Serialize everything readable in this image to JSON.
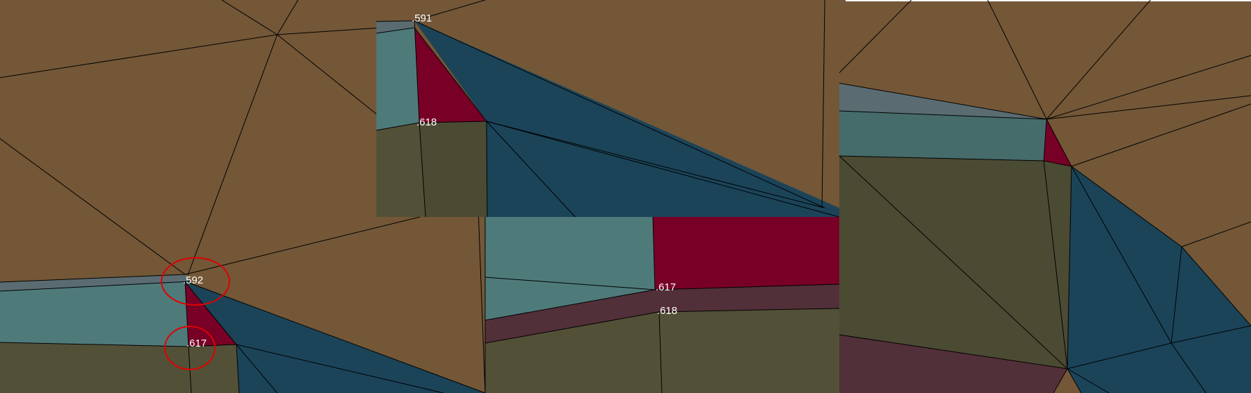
{
  "colors": {
    "brown": "#735737",
    "olive": "#525137",
    "olive_dark": "#4b4a33",
    "teal": "#4f7a7a",
    "teal_dark": "#466b6b",
    "slate": "#5a6c72",
    "navy": "#1b4459",
    "crimson": "#780026",
    "plum": "#523039",
    "annotation_red": "#e00000"
  },
  "labels": {
    "p591": ".591",
    "p618_top": ".618",
    "p592": ".592",
    "p617_left": ".617",
    "p617_mid": ".617",
    "p618_mid": ".618"
  }
}
